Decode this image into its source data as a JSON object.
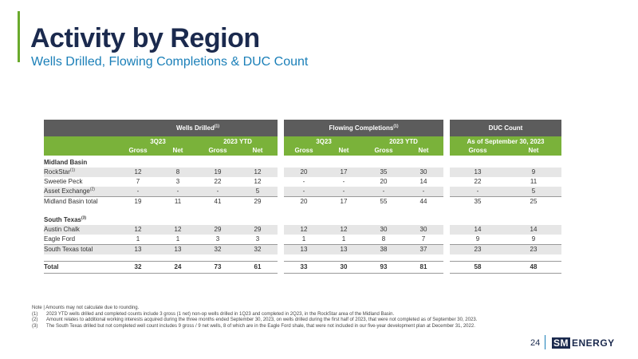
{
  "title": "Activity by Region",
  "subtitle": "Wells Drilled, Flowing Completions & DUC Count",
  "groups": {
    "wells_drilled": "Wells Drilled",
    "wells_drilled_note": "(1)",
    "flowing_completions": "Flowing Completions",
    "flowing_completions_note": "(1)",
    "duc_count": "DUC Count"
  },
  "subheaders": {
    "q3_1": "3Q23",
    "ytd_1": "2023 YTD",
    "q3_2": "3Q23",
    "ytd_2": "2023 YTD",
    "duc": "As of September 30, 2023"
  },
  "col_labels": {
    "gross": "Gross",
    "net": "Net"
  },
  "sections": {
    "midland": "Midland Basin",
    "south_texas": "South Texas",
    "south_texas_note": "(3)"
  },
  "rows": {
    "rockstar": {
      "label": "RockStar",
      "note": "(1)",
      "values": [
        "12",
        "8",
        "19",
        "12",
        "20",
        "17",
        "35",
        "30",
        "13",
        "9"
      ]
    },
    "sweetie": {
      "label": "Sweetie Peck",
      "values": [
        "7",
        "3",
        "22",
        "12",
        "-",
        "-",
        "20",
        "14",
        "22",
        "11"
      ]
    },
    "asset": {
      "label": "Asset Exchange",
      "note": "(2)",
      "values": [
        "-",
        "-",
        "-",
        "5",
        "-",
        "-",
        "-",
        "-",
        "-",
        "5"
      ]
    },
    "midland_total": {
      "label": "Midland Basin total",
      "values": [
        "19",
        "11",
        "41",
        "29",
        "20",
        "17",
        "55",
        "44",
        "35",
        "25"
      ]
    },
    "austin": {
      "label": "Austin Chalk",
      "values": [
        "12",
        "12",
        "29",
        "29",
        "12",
        "12",
        "30",
        "30",
        "14",
        "14"
      ]
    },
    "eagle": {
      "label": "Eagle Ford",
      "values": [
        "1",
        "1",
        "3",
        "3",
        "1",
        "1",
        "8",
        "7",
        "9",
        "9"
      ]
    },
    "st_total": {
      "label": "South Texas total",
      "values": [
        "13",
        "13",
        "32",
        "32",
        "13",
        "13",
        "38",
        "37",
        "23",
        "23"
      ]
    },
    "total": {
      "label": "Total",
      "values": [
        "32",
        "24",
        "73",
        "61",
        "33",
        "30",
        "93",
        "81",
        "58",
        "48"
      ]
    }
  },
  "notes": {
    "intro": "Note | Amounts may not calculate due to rounding.",
    "n1_num": "(1)",
    "n1": "2023 YTD wells drilled and completed counts include 3 gross (1 net) non-op wells drilled in 1Q23 and completed in 2Q23, in the RockStar area of the Midland Basin.",
    "n2_num": "(2)",
    "n2": "Amount relates to additional working interests acquired during the three months ended September 30, 2023, on wells drilled during the first half of 2023, that were not completed as of September 30, 2023.",
    "n3_num": "(3)",
    "n3": "The South Texas drilled but not completed well count includes 9 gross / 9 net wells, 8 of which are in the Eagle Ford shale, that were not included in our five-year development plan at December 31, 2022."
  },
  "footer": {
    "page": "24",
    "logo_sm": "SM",
    "logo_energy": "ENERGY"
  },
  "colors": {
    "title": "#1b2a4e",
    "subtitle": "#1a7fb8",
    "green": "#7ab23a",
    "header_gray": "#5c5c5c",
    "shade": "#e6e6e6"
  }
}
